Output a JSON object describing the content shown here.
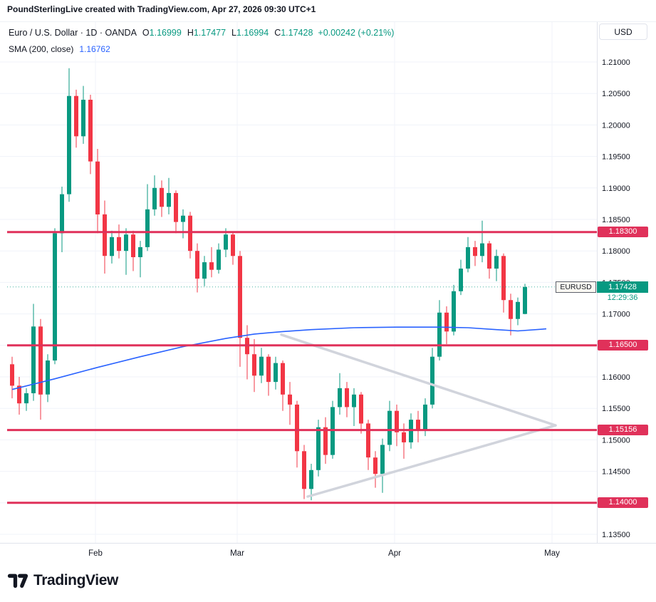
{
  "header": {
    "attribution": "PoundSterlingLive created with TradingView.com, Apr 27, 2026 09:30 UTC+1"
  },
  "legend": {
    "series_title": "Euro / U.S. Dollar · 1D · OANDA",
    "open_label": "O",
    "open": "1.16999",
    "high_label": "H",
    "high": "1.17477",
    "low_label": "L",
    "low": "1.16994",
    "close_label": "C",
    "close": "1.17428",
    "change": "+0.00242 (+0.21%)",
    "indicator_title": "SMA (200, close)",
    "indicator_value": "1.16762"
  },
  "price_axis": {
    "currency": "USD",
    "last": {
      "symbol": "EURUSD",
      "label": "1.17428",
      "countdown": "12:29:36"
    }
  },
  "footer": {
    "brand": "TradingView"
  },
  "colors": {
    "up": "#089981",
    "down": "#f23645",
    "sma": "#2962ff",
    "level": "#e0315a",
    "pattern": "#d1d4dc",
    "text": "#131722"
  },
  "chart_data": {
    "type": "candlestick",
    "symbol": "Euro / U.S. Dollar",
    "ticker": "EURUSD",
    "interval": "1D",
    "exchange": "OANDA",
    "ohlc_last": {
      "open": 1.16999,
      "high": 1.17477,
      "low": 1.16994,
      "close": 1.17428,
      "change": 0.00242,
      "change_pct": 0.21
    },
    "indicator": {
      "name": "SMA (200, close)",
      "value": 1.16762
    },
    "y_axis": {
      "max": 1.21,
      "min": 1.135,
      "step": 0.005,
      "grid": true,
      "ticks": [
        "1.21000",
        "1.20500",
        "1.20000",
        "1.19500",
        "1.19000",
        "1.18500",
        "1.18000",
        "1.17500",
        "1.17000",
        "1.16500",
        "1.16000",
        "1.15500",
        "1.15000",
        "1.14500",
        "1.14000",
        "1.13500"
      ]
    },
    "x_ticks": [
      {
        "label": "Feb",
        "i": 11.7
      },
      {
        "label": "Mar",
        "i": 31.6
      },
      {
        "label": "Apr",
        "i": 53.7
      },
      {
        "label": "May",
        "i": 75.8
      }
    ],
    "levels": [
      {
        "price": 1.183,
        "label": "1.18300"
      },
      {
        "price": 1.165,
        "label": "1.16500"
      },
      {
        "price": 1.15156,
        "label": "1.15156"
      },
      {
        "price": 1.14,
        "label": "1.14000"
      }
    ],
    "last": {
      "value": 1.17428,
      "countdown": "12:29:36"
    },
    "sma200": {
      "points": [
        [
          0,
          1.158
        ],
        [
          6,
          1.1597
        ],
        [
          12,
          1.1615
        ],
        [
          18,
          1.1632
        ],
        [
          24,
          1.1648
        ],
        [
          30,
          1.1661
        ],
        [
          34,
          1.1668
        ],
        [
          38,
          1.1672
        ],
        [
          42,
          1.1675
        ],
        [
          48,
          1.1678
        ],
        [
          54,
          1.1679
        ],
        [
          60,
          1.1679
        ],
        [
          64,
          1.1678
        ],
        [
          68,
          1.1675
        ],
        [
          71,
          1.1673
        ],
        [
          75,
          1.16762
        ]
      ]
    },
    "pattern_lines": [
      {
        "from": [
          37.8,
          1.1667
        ],
        "to": [
          76.3,
          1.1523
        ]
      },
      {
        "from": [
          41.5,
          1.141
        ],
        "to": [
          76.3,
          1.1523
        ]
      }
    ],
    "candles": [
      [
        1.162,
        1.1632,
        1.1566,
        1.1586
      ],
      [
        1.1586,
        1.16,
        1.154,
        1.1558
      ],
      [
        1.1558,
        1.1582,
        1.1546,
        1.1574
      ],
      [
        1.1574,
        1.1716,
        1.1562,
        1.168
      ],
      [
        1.168,
        1.1692,
        1.1532,
        1.1572
      ],
      [
        1.1572,
        1.1636,
        1.156,
        1.1626
      ],
      [
        1.1626,
        1.1836,
        1.162,
        1.1828
      ],
      [
        1.1828,
        1.1902,
        1.1798,
        1.189
      ],
      [
        1.189,
        1.209,
        1.1878,
        1.2046
      ],
      [
        1.2046,
        1.2056,
        1.1964,
        1.1982
      ],
      [
        1.1982,
        1.2062,
        1.197,
        1.204
      ],
      [
        1.204,
        1.2048,
        1.1922,
        1.1942
      ],
      [
        1.1942,
        1.1962,
        1.1828,
        1.1858
      ],
      [
        1.1858,
        1.188,
        1.1764,
        1.1792
      ],
      [
        1.1792,
        1.1832,
        1.178,
        1.1822
      ],
      [
        1.1822,
        1.1842,
        1.1788,
        1.18
      ],
      [
        1.18,
        1.1836,
        1.1762,
        1.1826
      ],
      [
        1.1826,
        1.1832,
        1.1768,
        1.179
      ],
      [
        1.179,
        1.1816,
        1.1758,
        1.1806
      ],
      [
        1.1806,
        1.1906,
        1.18,
        1.1866
      ],
      [
        1.1866,
        1.192,
        1.1856,
        1.19
      ],
      [
        1.19,
        1.1912,
        1.1854,
        1.187
      ],
      [
        1.187,
        1.1916,
        1.1858,
        1.1892
      ],
      [
        1.1892,
        1.1896,
        1.1828,
        1.1846
      ],
      [
        1.1846,
        1.1866,
        1.182,
        1.1856
      ],
      [
        1.1856,
        1.1862,
        1.1788,
        1.18
      ],
      [
        1.18,
        1.1812,
        1.1734,
        1.1756
      ],
      [
        1.1756,
        1.1792,
        1.1744,
        1.1782
      ],
      [
        1.1782,
        1.1806,
        1.1758,
        1.177
      ],
      [
        1.177,
        1.1812,
        1.1764,
        1.1802
      ],
      [
        1.1802,
        1.1836,
        1.179,
        1.1826
      ],
      [
        1.1826,
        1.183,
        1.1778,
        1.1792
      ],
      [
        1.1792,
        1.18,
        1.1616,
        1.1662
      ],
      [
        1.1662,
        1.1682,
        1.1596,
        1.1636
      ],
      [
        1.1636,
        1.166,
        1.1576,
        1.1602
      ],
      [
        1.1602,
        1.1646,
        1.159,
        1.1632
      ],
      [
        1.1632,
        1.1636,
        1.157,
        1.1592
      ],
      [
        1.1592,
        1.1632,
        1.158,
        1.1622
      ],
      [
        1.1622,
        1.1626,
        1.1546,
        1.1572
      ],
      [
        1.1572,
        1.1592,
        1.1524,
        1.1556
      ],
      [
        1.1556,
        1.1562,
        1.1456,
        1.1482
      ],
      [
        1.1482,
        1.1492,
        1.1406,
        1.1422
      ],
      [
        1.1422,
        1.1462,
        1.1404,
        1.1452
      ],
      [
        1.1452,
        1.1532,
        1.1442,
        1.152
      ],
      [
        1.152,
        1.1536,
        1.1462,
        1.1476
      ],
      [
        1.1476,
        1.1562,
        1.147,
        1.1552
      ],
      [
        1.1552,
        1.1606,
        1.154,
        1.1582
      ],
      [
        1.1582,
        1.1592,
        1.1536,
        1.1552
      ],
      [
        1.1552,
        1.1582,
        1.1522,
        1.1572
      ],
      [
        1.1572,
        1.1576,
        1.151,
        1.1526
      ],
      [
        1.1526,
        1.1532,
        1.1452,
        1.1472
      ],
      [
        1.1472,
        1.1482,
        1.1424,
        1.1446
      ],
      [
        1.1446,
        1.1502,
        1.1416,
        1.1492
      ],
      [
        1.1492,
        1.1562,
        1.1482,
        1.1546
      ],
      [
        1.1546,
        1.1556,
        1.149,
        1.1512
      ],
      [
        1.1512,
        1.1526,
        1.147,
        1.1496
      ],
      [
        1.1496,
        1.1542,
        1.1486,
        1.1532
      ],
      [
        1.1532,
        1.1546,
        1.1496,
        1.1516
      ],
      [
        1.1516,
        1.1566,
        1.1506,
        1.1556
      ],
      [
        1.1556,
        1.1646,
        1.155,
        1.1632
      ],
      [
        1.1632,
        1.1722,
        1.1626,
        1.1702
      ],
      [
        1.1702,
        1.1712,
        1.1652,
        1.1672
      ],
      [
        1.1672,
        1.1746,
        1.1666,
        1.1736
      ],
      [
        1.1736,
        1.1786,
        1.173,
        1.1772
      ],
      [
        1.1772,
        1.1822,
        1.1766,
        1.1806
      ],
      [
        1.1806,
        1.1816,
        1.1776,
        1.1792
      ],
      [
        1.1792,
        1.1848,
        1.1782,
        1.1812
      ],
      [
        1.1812,
        1.1816,
        1.1756,
        1.1772
      ],
      [
        1.1772,
        1.1802,
        1.1752,
        1.1792
      ],
      [
        1.1792,
        1.1796,
        1.1702,
        1.1722
      ],
      [
        1.1722,
        1.1732,
        1.1666,
        1.1692
      ],
      [
        1.1692,
        1.1726,
        1.1682,
        1.1719
      ],
      [
        1.16999,
        1.17477,
        1.16994,
        1.17428
      ]
    ]
  }
}
